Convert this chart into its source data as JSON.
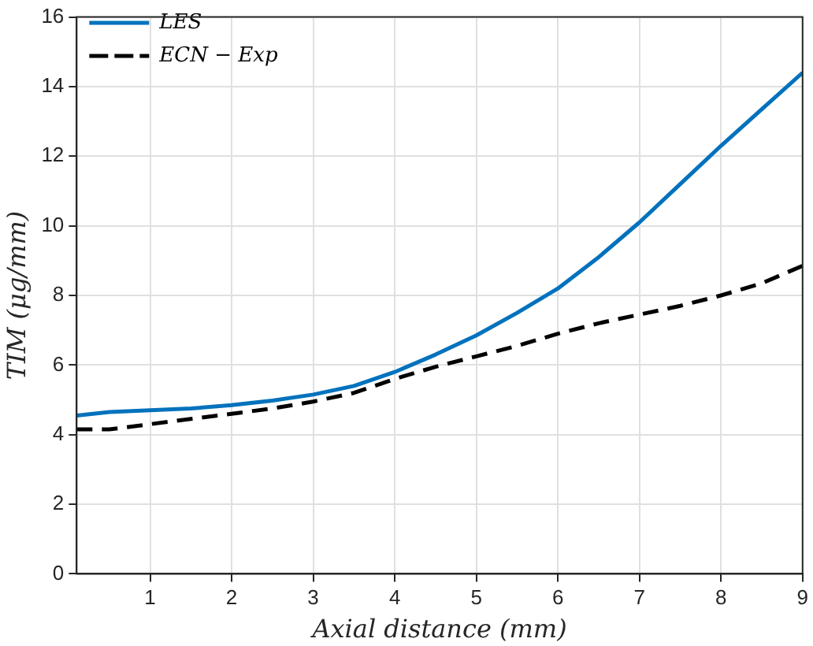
{
  "chart_data": {
    "type": "line",
    "xlabel": "Axial distance (mm)",
    "ylabel": "TIM (μg/mm)",
    "xlim": [
      0.1,
      9
    ],
    "xticks": [
      1,
      2,
      3,
      4,
      5,
      6,
      7,
      8,
      9
    ],
    "ylim": [
      0,
      16
    ],
    "yticks": [
      0,
      2,
      4,
      6,
      8,
      10,
      12,
      14,
      16
    ],
    "grid": true,
    "legend": "top left",
    "series": [
      {
        "name": "LES",
        "color": "#0072bd",
        "line_style": "solid",
        "x": [
          0.1,
          0.5,
          1,
          1.5,
          2,
          2.5,
          3,
          3.5,
          4,
          4.5,
          5,
          5.5,
          6,
          6.5,
          7,
          7.5,
          8,
          8.5,
          9
        ],
        "values": [
          4.55,
          4.65,
          4.7,
          4.75,
          4.85,
          4.98,
          5.15,
          5.4,
          5.8,
          6.3,
          6.85,
          7.5,
          8.2,
          9.1,
          10.1,
          11.2,
          12.3,
          13.35,
          14.4
        ]
      },
      {
        "name": "ECN − Exp",
        "color": "#000000",
        "line_style": "dashed",
        "x": [
          0.1,
          0.5,
          1,
          1.5,
          2,
          2.5,
          3,
          3.5,
          4,
          4.5,
          5,
          5.5,
          6,
          6.5,
          7,
          7.5,
          8,
          8.5,
          9
        ],
        "values": [
          4.15,
          4.15,
          4.3,
          4.45,
          4.6,
          4.75,
          4.95,
          5.2,
          5.6,
          5.95,
          6.25,
          6.55,
          6.9,
          7.2,
          7.45,
          7.7,
          8.0,
          8.35,
          8.85
        ]
      }
    ]
  }
}
